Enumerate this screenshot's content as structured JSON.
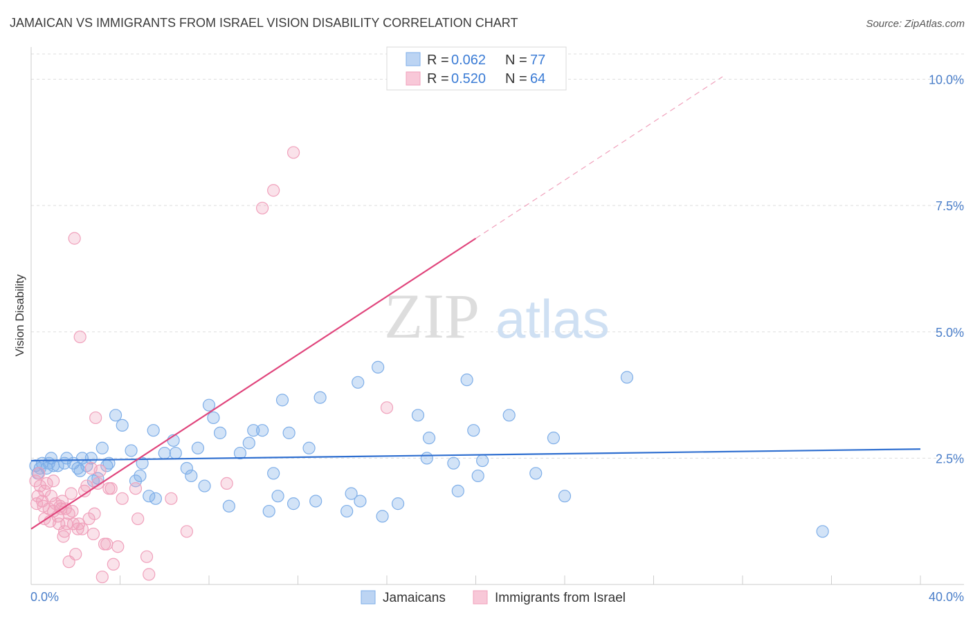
{
  "chart_data": {
    "type": "scatter",
    "title": "JAMAICAN VS IMMIGRANTS FROM ISRAEL VISION DISABILITY CORRELATION CHART",
    "source": "Source: ZipAtlas.com",
    "ylabel": "Vision Disability",
    "xlim": [
      0,
      40
    ],
    "ylim": [
      0,
      10.5
    ],
    "x_tick_labels": [
      "0.0%",
      "40.0%"
    ],
    "y_ticks": [
      {
        "value": 2.5,
        "label": "2.5%"
      },
      {
        "value": 5.0,
        "label": "5.0%"
      },
      {
        "value": 7.5,
        "label": "7.5%"
      },
      {
        "value": 10.0,
        "label": "10.0%"
      }
    ],
    "watermark": {
      "zip": "ZIP",
      "atlas": "atlas"
    },
    "legend": [
      {
        "r_label": "R = ",
        "r_value": "0.062",
        "n_label": "N = ",
        "n_value": "77"
      },
      {
        "r_label": "R = ",
        "r_value": "0.520",
        "n_label": "N = ",
        "n_value": "64"
      }
    ],
    "series": [
      {
        "name": "Jamaicans",
        "color": "#7eaee8",
        "line_color": "#2f6fd0",
        "trend": {
          "x0": 0,
          "y0": 2.45,
          "x1": 40,
          "y1": 2.68
        },
        "points": [
          [
            0.3,
            2.2
          ],
          [
            0.4,
            2.3
          ],
          [
            0.5,
            2.4
          ],
          [
            0.7,
            2.3
          ],
          [
            0.8,
            2.4
          ],
          [
            0.9,
            2.5
          ],
          [
            1.2,
            2.35
          ],
          [
            1.5,
            2.4
          ],
          [
            1.6,
            2.5
          ],
          [
            1.9,
            2.4
          ],
          [
            2.1,
            2.3
          ],
          [
            2.2,
            2.25
          ],
          [
            2.3,
            2.5
          ],
          [
            2.5,
            2.35
          ],
          [
            2.7,
            2.5
          ],
          [
            2.8,
            2.05
          ],
          [
            3.0,
            2.1
          ],
          [
            3.2,
            2.7
          ],
          [
            3.4,
            2.35
          ],
          [
            3.5,
            2.4
          ],
          [
            3.8,
            3.35
          ],
          [
            4.1,
            3.15
          ],
          [
            4.5,
            2.65
          ],
          [
            4.7,
            2.05
          ],
          [
            4.9,
            2.15
          ],
          [
            5.0,
            2.4
          ],
          [
            5.3,
            1.75
          ],
          [
            5.5,
            3.05
          ],
          [
            5.6,
            1.7
          ],
          [
            6.0,
            2.6
          ],
          [
            6.4,
            2.85
          ],
          [
            6.5,
            2.6
          ],
          [
            7.0,
            2.3
          ],
          [
            7.2,
            2.15
          ],
          [
            7.5,
            2.7
          ],
          [
            7.8,
            1.95
          ],
          [
            8.0,
            3.55
          ],
          [
            8.2,
            3.3
          ],
          [
            8.5,
            3.0
          ],
          [
            8.9,
            1.55
          ],
          [
            9.4,
            2.6
          ],
          [
            9.8,
            2.8
          ],
          [
            10.0,
            3.05
          ],
          [
            10.4,
            3.05
          ],
          [
            10.7,
            1.45
          ],
          [
            10.9,
            2.2
          ],
          [
            11.1,
            1.75
          ],
          [
            11.3,
            3.65
          ],
          [
            11.6,
            3.0
          ],
          [
            11.8,
            1.6
          ],
          [
            12.5,
            2.7
          ],
          [
            12.8,
            1.65
          ],
          [
            13.0,
            3.7
          ],
          [
            14.2,
            1.45
          ],
          [
            14.4,
            1.8
          ],
          [
            14.7,
            4.0
          ],
          [
            14.8,
            1.65
          ],
          [
            15.6,
            4.3
          ],
          [
            15.8,
            1.35
          ],
          [
            16.5,
            1.6
          ],
          [
            17.4,
            3.35
          ],
          [
            17.8,
            2.5
          ],
          [
            17.9,
            2.9
          ],
          [
            19.0,
            2.4
          ],
          [
            19.2,
            1.85
          ],
          [
            19.6,
            4.05
          ],
          [
            19.9,
            3.05
          ],
          [
            20.1,
            2.15
          ],
          [
            20.3,
            2.45
          ],
          [
            21.5,
            3.35
          ],
          [
            22.7,
            2.2
          ],
          [
            23.5,
            2.9
          ],
          [
            24.0,
            1.75
          ],
          [
            26.8,
            4.1
          ],
          [
            35.6,
            1.05
          ],
          [
            0.2,
            2.35
          ],
          [
            1.0,
            2.35
          ]
        ]
      },
      {
        "name": "Immigrants from Israel",
        "color": "#f0a0bb",
        "line_color": "#e0457c",
        "trend": {
          "x0": 0,
          "y0": 1.1,
          "x1": 20,
          "y1": 6.85
        },
        "trend_dashed": {
          "x0": 20,
          "y0": 6.85,
          "x1": 31.1,
          "y1": 10.05
        },
        "points": [
          [
            0.2,
            2.05
          ],
          [
            0.3,
            1.75
          ],
          [
            0.35,
            2.2
          ],
          [
            0.4,
            1.95
          ],
          [
            0.5,
            1.65
          ],
          [
            0.55,
            1.55
          ],
          [
            0.6,
            1.85
          ],
          [
            0.7,
            2.0
          ],
          [
            0.8,
            1.5
          ],
          [
            0.85,
            1.25
          ],
          [
            0.9,
            1.75
          ],
          [
            1.0,
            1.45
          ],
          [
            1.0,
            2.05
          ],
          [
            1.1,
            1.6
          ],
          [
            1.2,
            1.35
          ],
          [
            1.25,
            1.2
          ],
          [
            1.3,
            1.55
          ],
          [
            1.35,
            1.5
          ],
          [
            1.4,
            1.65
          ],
          [
            1.45,
            0.95
          ],
          [
            1.5,
            1.05
          ],
          [
            1.55,
            1.5
          ],
          [
            1.6,
            1.2
          ],
          [
            1.7,
            1.4
          ],
          [
            1.7,
            0.45
          ],
          [
            1.8,
            1.8
          ],
          [
            1.85,
            1.45
          ],
          [
            1.9,
            1.2
          ],
          [
            2.0,
            0.6
          ],
          [
            2.1,
            1.1
          ],
          [
            2.15,
            1.2
          ],
          [
            2.2,
            4.9
          ],
          [
            2.3,
            1.1
          ],
          [
            2.4,
            1.85
          ],
          [
            2.5,
            1.95
          ],
          [
            2.6,
            1.3
          ],
          [
            2.7,
            2.3
          ],
          [
            2.8,
            1.0
          ],
          [
            2.85,
            1.4
          ],
          [
            2.9,
            3.3
          ],
          [
            3.0,
            2.0
          ],
          [
            3.1,
            2.25
          ],
          [
            3.2,
            0.15
          ],
          [
            3.3,
            0.8
          ],
          [
            3.4,
            0.8
          ],
          [
            3.5,
            1.9
          ],
          [
            3.6,
            1.9
          ],
          [
            3.7,
            0.4
          ],
          [
            3.9,
            0.75
          ],
          [
            4.1,
            1.7
          ],
          [
            4.7,
            1.9
          ],
          [
            4.8,
            1.3
          ],
          [
            5.2,
            0.55
          ],
          [
            5.3,
            0.2
          ],
          [
            6.3,
            1.7
          ],
          [
            7.0,
            1.05
          ],
          [
            8.8,
            2.0
          ],
          [
            10.4,
            7.45
          ],
          [
            10.9,
            7.8
          ],
          [
            11.8,
            8.55
          ],
          [
            16.0,
            3.5
          ],
          [
            1.95,
            6.85
          ],
          [
            0.25,
            1.6
          ],
          [
            0.6,
            1.3
          ]
        ]
      }
    ]
  }
}
